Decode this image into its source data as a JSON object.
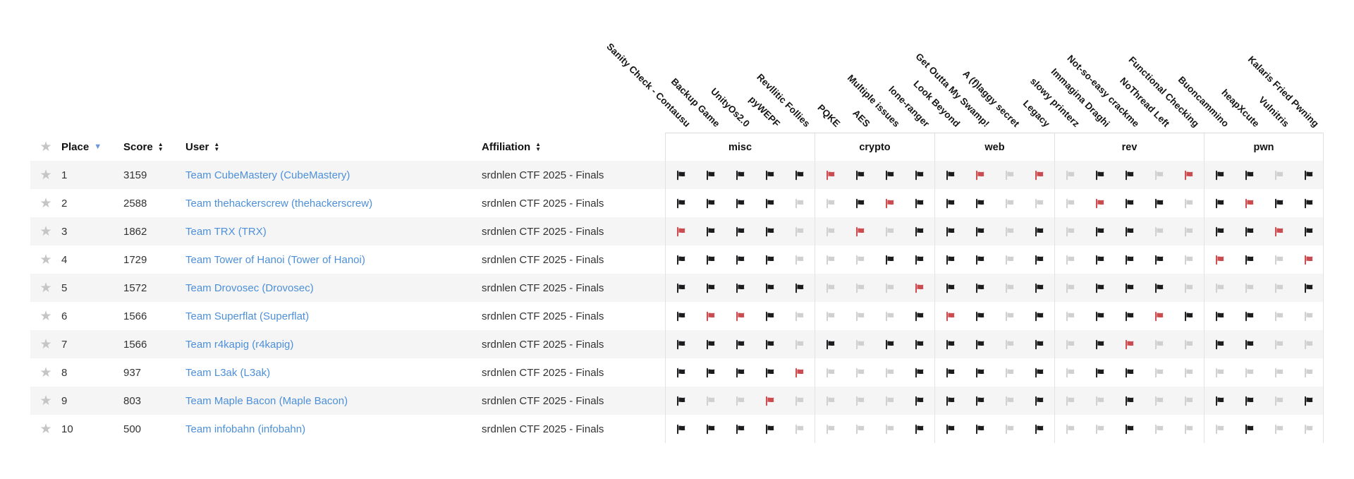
{
  "table": {
    "columns": {
      "place": "Place",
      "score": "Score",
      "user": "User",
      "affiliation": "Affiliation"
    },
    "sort": {
      "active_column": "place",
      "direction": "desc"
    },
    "favorite_icon": "star"
  },
  "categories": [
    {
      "name": "misc",
      "challenges": [
        "Sanity Check - Contausu",
        "Backup Game",
        "UnityOs2.0",
        "pyWEPF",
        "Revllitic Follies"
      ]
    },
    {
      "name": "crypto",
      "challenges": [
        "PQKE",
        "AES",
        "Multiple issues",
        "lone-ranger"
      ]
    },
    {
      "name": "web",
      "challenges": [
        "Look Beyond",
        "Get Outta My Swamp!",
        "A (f)laggy secret",
        "Legacy"
      ]
    },
    {
      "name": "rev",
      "challenges": [
        "slowy printerz",
        "Immagina Draghi",
        "Not-so-easy crackme",
        "NoThread Left",
        "Functional Checking"
      ]
    },
    {
      "name": "pwn",
      "challenges": [
        "Buoncammino",
        "heapXcute",
        "Vulnitris",
        "Kalaris Fried Pwning"
      ]
    }
  ],
  "flag_states": {
    "S": "solved",
    "B": "first-blood",
    "U": "unsolved"
  },
  "colors": {
    "flag_solved": "#1c1c1e",
    "flag_first_blood": "#cb4b4f",
    "flag_unsolved": "#d0d0d0",
    "link": "#4d90d9",
    "row_alt": "#f5f5f6",
    "star": "#c5c5c5",
    "sort_active": "#6b93e0"
  },
  "rows": [
    {
      "place": "1",
      "score": "3159",
      "user": "Team CubeMastery (CubeMastery)",
      "affiliation": "srdnlen CTF 2025 - Finals",
      "flags": [
        "S",
        "S",
        "S",
        "S",
        "S",
        "B",
        "S",
        "S",
        "S",
        "S",
        "B",
        "U",
        "B",
        "U",
        "S",
        "S",
        "U",
        "B",
        "S",
        "S",
        "U",
        "S"
      ]
    },
    {
      "place": "2",
      "score": "2588",
      "user": "Team thehackerscrew (thehackerscrew)",
      "affiliation": "srdnlen CTF 2025 - Finals",
      "flags": [
        "S",
        "S",
        "S",
        "S",
        "U",
        "U",
        "S",
        "B",
        "S",
        "S",
        "S",
        "U",
        "U",
        "U",
        "B",
        "S",
        "S",
        "U",
        "S",
        "B",
        "S",
        "S"
      ]
    },
    {
      "place": "3",
      "score": "1862",
      "user": "Team TRX (TRX)",
      "affiliation": "srdnlen CTF 2025 - Finals",
      "flags": [
        "B",
        "S",
        "S",
        "S",
        "U",
        "U",
        "B",
        "U",
        "S",
        "S",
        "S",
        "U",
        "S",
        "U",
        "S",
        "S",
        "U",
        "U",
        "S",
        "S",
        "B",
        "S"
      ]
    },
    {
      "place": "4",
      "score": "1729",
      "user": "Team Tower of Hanoi (Tower of Hanoi)",
      "affiliation": "srdnlen CTF 2025 - Finals",
      "flags": [
        "S",
        "S",
        "S",
        "S",
        "U",
        "U",
        "U",
        "S",
        "S",
        "S",
        "S",
        "U",
        "S",
        "U",
        "S",
        "S",
        "S",
        "U",
        "B",
        "S",
        "U",
        "B"
      ]
    },
    {
      "place": "5",
      "score": "1572",
      "user": "Team Drovosec (Drovosec)",
      "affiliation": "srdnlen CTF 2025 - Finals",
      "flags": [
        "S",
        "S",
        "S",
        "S",
        "S",
        "U",
        "U",
        "U",
        "B",
        "S",
        "S",
        "U",
        "S",
        "U",
        "S",
        "S",
        "S",
        "U",
        "U",
        "U",
        "U",
        "S"
      ]
    },
    {
      "place": "6",
      "score": "1566",
      "user": "Team Superflat (Superflat)",
      "affiliation": "srdnlen CTF 2025 - Finals",
      "flags": [
        "S",
        "B",
        "B",
        "S",
        "U",
        "U",
        "U",
        "U",
        "S",
        "B",
        "S",
        "U",
        "S",
        "U",
        "S",
        "S",
        "B",
        "S",
        "S",
        "S",
        "U",
        "U"
      ]
    },
    {
      "place": "7",
      "score": "1566",
      "user": "Team r4kapig (r4kapig)",
      "affiliation": "srdnlen CTF 2025 - Finals",
      "flags": [
        "S",
        "S",
        "S",
        "S",
        "U",
        "S",
        "U",
        "S",
        "S",
        "S",
        "S",
        "U",
        "S",
        "U",
        "S",
        "B",
        "U",
        "U",
        "S",
        "S",
        "U",
        "U"
      ]
    },
    {
      "place": "8",
      "score": "937",
      "user": "Team L3ak (L3ak)",
      "affiliation": "srdnlen CTF 2025 - Finals",
      "flags": [
        "S",
        "S",
        "S",
        "S",
        "B",
        "U",
        "U",
        "U",
        "S",
        "S",
        "S",
        "U",
        "S",
        "U",
        "S",
        "S",
        "U",
        "U",
        "U",
        "U",
        "U",
        "U"
      ]
    },
    {
      "place": "9",
      "score": "803",
      "user": "Team Maple Bacon (Maple Bacon)",
      "affiliation": "srdnlen CTF 2025 - Finals",
      "flags": [
        "S",
        "U",
        "U",
        "B",
        "U",
        "U",
        "U",
        "U",
        "S",
        "S",
        "S",
        "U",
        "S",
        "U",
        "U",
        "S",
        "U",
        "U",
        "S",
        "S",
        "U",
        "S"
      ]
    },
    {
      "place": "10",
      "score": "500",
      "user": "Team infobahn (infobahn)",
      "affiliation": "srdnlen CTF 2025 - Finals",
      "flags": [
        "S",
        "S",
        "S",
        "S",
        "U",
        "U",
        "U",
        "U",
        "S",
        "S",
        "S",
        "U",
        "S",
        "U",
        "U",
        "S",
        "U",
        "U",
        "U",
        "S",
        "U",
        "U"
      ]
    }
  ]
}
